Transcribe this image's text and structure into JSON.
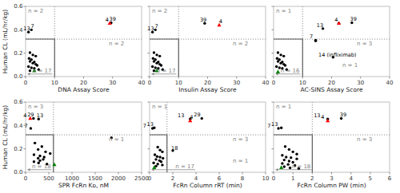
{
  "chart_data": [
    {
      "type": "scatter",
      "x_label": "DNA Assay Score",
      "y_label": "Human CL (mL/hr/kg)",
      "xlim": [
        0,
        40
      ],
      "xticks": [
        0,
        10,
        20,
        30,
        40
      ],
      "ylim": [
        0,
        0.6
      ],
      "yticks": [
        {
          "value": 0.0,
          "label": "0.0"
        },
        0.2,
        0.4,
        0.6
      ],
      "grid": false,
      "x_threshold": 10,
      "y_threshold": 0.32,
      "series": [
        {
          "color": "black",
          "marker": "circle",
          "x": [
            1.0,
            2.0,
            1.5,
            2.5,
            3.5,
            1.2,
            2.0,
            1.5,
            3.0,
            2.5,
            3.5,
            4.0,
            1.0,
            2.0,
            3.0,
            4.5,
            1.5,
            29.5
          ],
          "values": [
            0.38,
            0.4,
            0.205,
            0.185,
            0.175,
            0.155,
            0.145,
            0.13,
            0.125,
            0.115,
            0.105,
            0.095,
            0.085,
            0.075,
            0.07,
            0.06,
            0.05,
            0.46
          ]
        },
        {
          "color": "green",
          "marker": "triangle",
          "x": [
            3.0
          ],
          "values": [
            0.05
          ]
        },
        {
          "color": "red",
          "marker": "triangle",
          "x": [
            29.0
          ],
          "values": [
            0.455
          ]
        }
      ],
      "annotations": [
        {
          "text": "13",
          "x": 0.4,
          "y": 0.39
        },
        {
          "text": "7",
          "x": 1.4,
          "y": 0.41
        },
        {
          "text": "39",
          "x": 30.0,
          "y": 0.47
        },
        {
          "text": "4",
          "x": 28.3,
          "y": 0.465
        }
      ],
      "n_labels": {
        "top_left": "n = 2",
        "bottom_right": "n = 2",
        "bottom_left": "n = 17"
      },
      "arrow": {
        "x": 9.5,
        "y": 0.022
      }
    },
    {
      "type": "scatter",
      "x_label": "Insulin Assay Score",
      "tick_labels": "x",
      "xlim": [
        0,
        40
      ],
      "xticks": [
        0,
        10,
        20,
        30,
        40
      ],
      "ylim": [
        0,
        0.6
      ],
      "yticks": [
        {
          "value": 0.0,
          "label": "0.0"
        },
        0.2,
        0.4,
        0.6
      ],
      "grid": false,
      "x_threshold": 10,
      "y_threshold": 0.32,
      "series": [
        {
          "color": "black",
          "marker": "circle",
          "x": [
            1.0,
            2.0,
            1.5,
            2.5,
            3.5,
            1.2,
            2.0,
            1.5,
            3.0,
            2.5,
            3.5,
            4.0,
            1.0,
            2.0,
            3.0,
            4.5,
            1.5,
            19.0
          ],
          "values": [
            0.38,
            0.4,
            0.205,
            0.185,
            0.175,
            0.155,
            0.145,
            0.13,
            0.125,
            0.115,
            0.105,
            0.095,
            0.085,
            0.075,
            0.07,
            0.06,
            0.05,
            0.455
          ]
        },
        {
          "color": "green",
          "marker": "triangle",
          "x": [
            2.5
          ],
          "values": [
            0.05
          ]
        },
        {
          "color": "red",
          "marker": "triangle",
          "x": [
            24.0
          ],
          "values": [
            0.44
          ]
        }
      ],
      "annotations": [
        {
          "text": "13",
          "x": 0.4,
          "y": 0.39
        },
        {
          "text": "7",
          "x": 1.4,
          "y": 0.41
        },
        {
          "text": "39",
          "x": 18.5,
          "y": 0.465
        },
        {
          "text": "4",
          "x": 24.5,
          "y": 0.45
        }
      ],
      "n_labels": {
        "top_left": "n = 2",
        "bottom_right": "n = 2",
        "bottom_left": "n = 17"
      },
      "arrow": {
        "x": 9.5,
        "y": 0.022
      }
    },
    {
      "type": "scatter",
      "x_label": "AC-SINS Assay Score",
      "tick_labels": "x",
      "xlim": [
        0,
        40
      ],
      "xticks": [
        0,
        10,
        20,
        30,
        40
      ],
      "ylim": [
        0,
        0.6
      ],
      "yticks": [
        {
          "value": 0.0,
          "label": "0.0"
        },
        0.2,
        0.4,
        0.6
      ],
      "grid": false,
      "x_threshold": 10,
      "y_threshold": 0.32,
      "series": [
        {
          "color": "black",
          "marker": "circle",
          "x": [
            1.5,
            2.5,
            3.5,
            1.2,
            2.0,
            1.5,
            3.0,
            2.5,
            3.5,
            4.0,
            1.0,
            2.0,
            3.0,
            4.5,
            14.5,
            14.5,
            17.0,
            22.5,
            27.0,
            20.5
          ],
          "values": [
            0.205,
            0.185,
            0.175,
            0.155,
            0.145,
            0.13,
            0.125,
            0.115,
            0.105,
            0.095,
            0.085,
            0.075,
            0.07,
            0.06,
            0.31,
            0.305,
            0.41,
            0.455,
            0.46,
            0.165
          ]
        },
        {
          "color": "green",
          "marker": "triangle",
          "x": [
            1.5
          ],
          "values": [
            0.04
          ]
        },
        {
          "color": "red",
          "marker": "triangle",
          "x": [
            22.5
          ],
          "values": [
            0.455
          ]
        }
      ],
      "annotations": [
        {
          "text": "7",
          "x": 13.0,
          "y": 0.32
        },
        {
          "text": "13",
          "x": 16.0,
          "y": 0.42
        },
        {
          "text": "39",
          "x": 27.5,
          "y": 0.47
        },
        {
          "text": "14 (infliximab)",
          "x": 22.0,
          "y": 0.165
        },
        {
          "text": "4",
          "x": 21.6,
          "y": 0.465
        }
      ],
      "n_labels": {
        "top_left": "n = 1",
        "bottom_right": "n = 3",
        "bottom_left": "n = 16",
        "extra": [
          {
            "text": "n = 1",
            "x": 29,
            "y": 0.12
          }
        ]
      },
      "arrow": {
        "x": 9.5,
        "y": 0.022
      }
    },
    {
      "type": "scatter",
      "x_label": "SPR FcRn Kᴅ, nM",
      "y_label": "Human CL (mL/hr/kg)",
      "xlim": [
        0,
        2500
      ],
      "xticks": [
        0,
        500,
        1000,
        1500,
        2000,
        2500
      ],
      "ylim": [
        0,
        0.6
      ],
      "yticks": [
        {
          "value": 0.0,
          "label": "0.0"
        },
        0.2,
        0.4,
        0.6
      ],
      "grid": false,
      "x_threshold": 600,
      "y_threshold": 0.32,
      "series": [
        {
          "color": "black",
          "marker": "circle",
          "x": [
            170,
            280,
            110,
            200,
            350,
            270,
            430,
            530,
            180,
            310,
            400,
            270,
            380,
            310,
            180,
            280,
            460,
            1850
          ],
          "values": [
            0.46,
            0.455,
            0.375,
            0.25,
            0.22,
            0.195,
            0.175,
            0.16,
            0.15,
            0.14,
            0.13,
            0.12,
            0.11,
            0.1,
            0.09,
            0.08,
            0.07,
            0.295
          ]
        },
        {
          "color": "green",
          "marker": "triangle",
          "x": [
            620
          ],
          "values": [
            0.065
          ]
        },
        {
          "color": "red",
          "marker": "triangle",
          "x": [
            100
          ],
          "values": [
            0.46
          ]
        }
      ],
      "annotations": [
        {
          "text": "29",
          "x": 110,
          "y": 0.47
        },
        {
          "text": "13",
          "x": 310,
          "y": 0.465
        },
        {
          "text": "7",
          "x": 10,
          "y": 0.375
        },
        {
          "text": "4",
          "x": 0,
          "y": 0.465
        }
      ],
      "n_labels": {
        "top_left": "n = 3",
        "bottom_right": "n = 1",
        "bottom_left": "n = 18"
      },
      "arrow": {
        "x": 580,
        "y": 0.022
      }
    },
    {
      "type": "scatter",
      "x_label": "FcRn Column rRT (min)",
      "tick_labels": "x",
      "xlim": [
        0,
        10
      ],
      "xticks": [
        0,
        2,
        4,
        6,
        8,
        10
      ],
      "ylim": [
        0,
        0.6
      ],
      "yticks": [
        {
          "value": 0.0,
          "label": "0.0"
        },
        0.2,
        0.4,
        0.6
      ],
      "grid": false,
      "x_threshold": 1.5,
      "y_threshold": 0.32,
      "series": [
        {
          "color": "black",
          "marker": "circle",
          "x": [
            0.4,
            0.25,
            0.7,
            0.9,
            1.1,
            0.45,
            0.65,
            0.9,
            1.15,
            0.55,
            0.85,
            1.0,
            0.35,
            0.7,
            1.1,
            0.55,
            2.0,
            3.5,
            4.5
          ],
          "values": [
            0.38,
            0.375,
            0.215,
            0.19,
            0.175,
            0.15,
            0.135,
            0.13,
            0.12,
            0.11,
            0.1,
            0.09,
            0.08,
            0.07,
            0.062,
            0.052,
            0.185,
            0.455,
            0.46
          ]
        },
        {
          "color": "green",
          "marker": "triangle",
          "x": [
            0.4
          ],
          "values": [
            0.04
          ]
        },
        {
          "color": "red",
          "marker": "triangle",
          "x": [
            3.5
          ],
          "values": [
            0.44
          ]
        }
      ],
      "annotations": [
        {
          "text": "13",
          "x": 0.05,
          "y": 0.39
        },
        {
          "text": "7",
          "x": -0.1,
          "y": 0.375
        },
        {
          "text": "18",
          "x": 2.15,
          "y": 0.185
        },
        {
          "text": "13",
          "x": 2.7,
          "y": 0.465
        },
        {
          "text": "29",
          "x": 4.1,
          "y": 0.47
        },
        {
          "text": "4",
          "x": 3.65,
          "y": 0.45
        }
      ],
      "n_labels": {
        "top_left": "n = 1",
        "bottom_right": "n = 3",
        "bottom_left": "n = 17",
        "extra": [
          {
            "text": "n = 1",
            "x": 8.5,
            "y": 0.12
          }
        ]
      },
      "arrow": {
        "x": 4.0,
        "y": 0.022
      }
    },
    {
      "type": "scatter",
      "x_label": "FcRn Column PW (min)",
      "tick_labels": "x",
      "xlim": [
        0,
        6
      ],
      "xticks": [
        0,
        1,
        2,
        3,
        4,
        5,
        6
      ],
      "ylim": [
        0,
        0.6
      ],
      "yticks": [
        {
          "value": 0.0,
          "label": "0.0"
        },
        0.2,
        0.4,
        0.6
      ],
      "grid": false,
      "x_threshold": 2,
      "y_threshold": 0.32,
      "series": [
        {
          "color": "black",
          "marker": "circle",
          "x": [
            0.4,
            0.25,
            0.6,
            0.8,
            1.0,
            1.2,
            0.45,
            0.65,
            0.9,
            1.2,
            0.55,
            0.8,
            1.0,
            0.45,
            0.75,
            1.1,
            0.55,
            0.85,
            1.3,
            3.5,
            2.8
          ],
          "values": [
            0.38,
            0.375,
            0.22,
            0.195,
            0.175,
            0.155,
            0.145,
            0.13,
            0.125,
            0.115,
            0.105,
            0.095,
            0.085,
            0.075,
            0.067,
            0.058,
            0.048,
            0.038,
            0.032,
            0.46,
            0.455
          ]
        },
        {
          "color": "green",
          "marker": "triangle",
          "x": [
            0.4
          ],
          "values": [
            0.04
          ]
        },
        {
          "color": "red",
          "marker": "triangle",
          "x": [
            2.8
          ],
          "values": [
            0.44
          ]
        }
      ],
      "annotations": [
        {
          "text": "13",
          "x": 0.05,
          "y": 0.39
        },
        {
          "text": "7",
          "x": -0.1,
          "y": 0.375
        },
        {
          "text": "39",
          "x": 3.6,
          "y": 0.47
        },
        {
          "text": "13",
          "x": 2.25,
          "y": 0.465
        },
        {
          "text": "4",
          "x": 2.25,
          "y": 0.45
        }
      ],
      "n_labels": {
        "top_left": "n = 1",
        "bottom_right": "n = 3",
        "bottom_left": "n = 18"
      },
      "arrow": {
        "x": 2.0,
        "y": 0.022
      }
    }
  ]
}
